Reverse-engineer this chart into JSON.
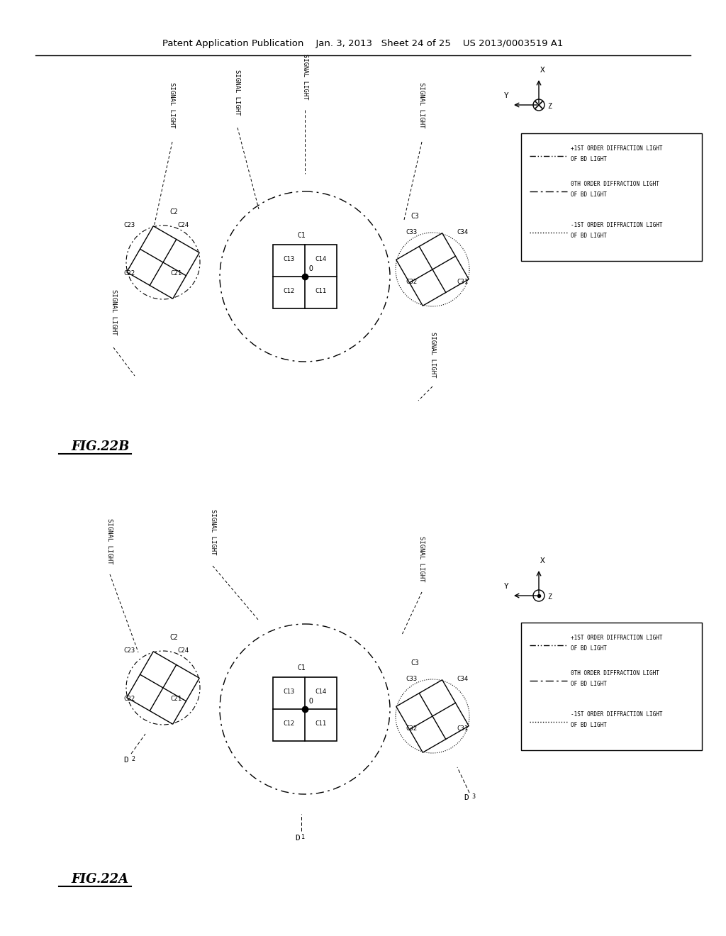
{
  "title_header": "Patent Application Publication    Jan. 3, 2013   Sheet 24 of 25    US 2013/0003519 A1",
  "fig22a_label": "FIG.22A",
  "fig22b_label": "FIG.22B",
  "background_color": "#ffffff",
  "line_color": "#000000"
}
